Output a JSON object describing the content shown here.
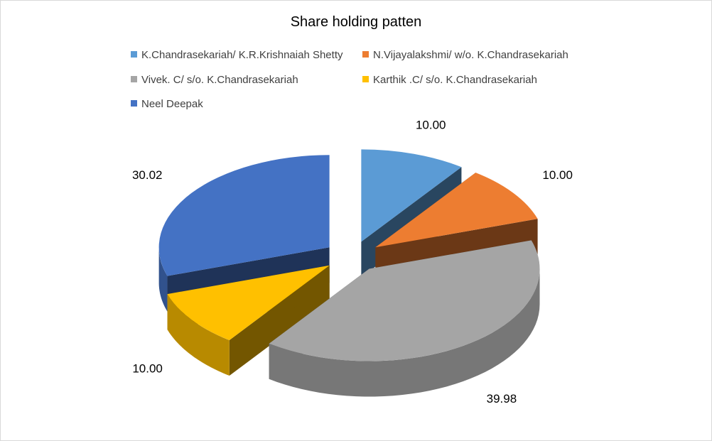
{
  "chart_data": {
    "type": "pie",
    "title": "Share holding patten",
    "style": "3d-exploded",
    "legend_position": "top",
    "series": [
      {
        "categories": [
          "K.Chandrasekariah/ K.R.Krishnaiah Shetty",
          "N.Vijayalakshmi/ w/o. K.Chandrasekariah",
          "Vivek. C/ s/o. K.Chandrasekariah",
          "Karthik .C/ s/o. K.Chandrasekariah",
          "Neel Deepak"
        ],
        "values": [
          10.0,
          10.0,
          39.98,
          10.0,
          30.02
        ],
        "labels": [
          "10.00",
          "10.00",
          "39.98",
          "10.00",
          "30.02"
        ]
      }
    ],
    "colors": [
      "#5b9bd5",
      "#ed7d31",
      "#a5a5a5",
      "#ffc000",
      "#4472c4"
    ]
  }
}
